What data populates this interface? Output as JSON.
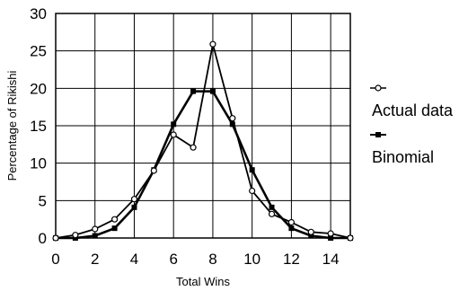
{
  "chart_data": {
    "type": "line",
    "xlabel": "Total Wins",
    "ylabel": "Percentage of Rikishi",
    "xlim": [
      0,
      15
    ],
    "ylim": [
      0,
      30
    ],
    "xticks": [
      "0",
      "2",
      "4",
      "6",
      "8",
      "10",
      "12",
      "14"
    ],
    "yticks": [
      "0",
      "5",
      "10",
      "15",
      "20",
      "25",
      "30"
    ],
    "grid": true,
    "legend_position": "right",
    "x": [
      0,
      1,
      2,
      3,
      4,
      5,
      6,
      7,
      8,
      9,
      10,
      11,
      12,
      13,
      14,
      15
    ],
    "series": [
      {
        "name": "Actual data",
        "marker": "open-circle",
        "color": "#000000",
        "values": [
          0,
          0.4,
          1.2,
          2.5,
          5.2,
          9.0,
          13.8,
          12.1,
          25.9,
          16.0,
          6.3,
          3.2,
          2.1,
          0.8,
          0.6,
          0
        ]
      },
      {
        "name": "Binomial",
        "marker": "filled-square",
        "color": "#000000",
        "values": [
          0,
          0,
          0.3,
          1.3,
          4.1,
          9.1,
          15.2,
          19.6,
          19.6,
          15.2,
          9.1,
          4.1,
          1.3,
          0.3,
          0,
          0
        ]
      }
    ]
  }
}
